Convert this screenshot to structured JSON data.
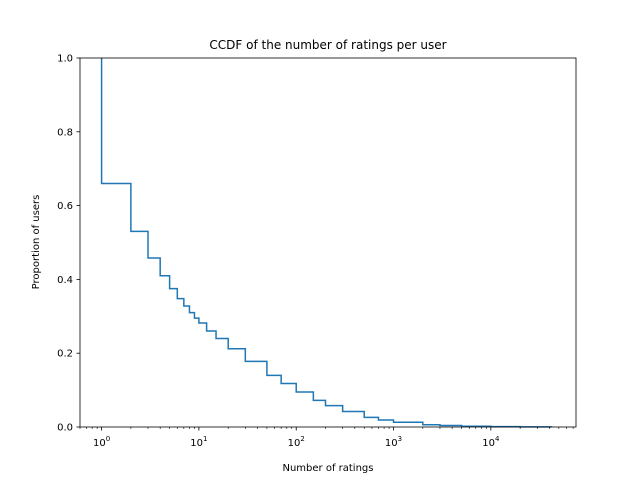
{
  "chart_data": {
    "type": "line",
    "title": "CCDF of the number of ratings per user",
    "xlabel": "Number of ratings",
    "ylabel": "Proportion of users",
    "xscale": "log",
    "xlim": [
      0.6,
      75000
    ],
    "ylim": [
      0,
      1.0
    ],
    "grid": false,
    "legend": "none",
    "x_ticks": [
      {
        "value": 1,
        "base": "10",
        "exp": "0"
      },
      {
        "value": 10,
        "base": "10",
        "exp": "1"
      },
      {
        "value": 100,
        "base": "10",
        "exp": "2"
      },
      {
        "value": 1000,
        "base": "10",
        "exp": "3"
      },
      {
        "value": 10000,
        "base": "10",
        "exp": "4"
      }
    ],
    "y_ticks": [
      {
        "value": 0.0,
        "label": "0.0"
      },
      {
        "value": 0.2,
        "label": "0.2"
      },
      {
        "value": 0.4,
        "label": "0.4"
      },
      {
        "value": 0.6,
        "label": "0.6"
      },
      {
        "value": 0.8,
        "label": "0.8"
      },
      {
        "value": 1.0,
        "label": "1.0"
      }
    ],
    "series": [
      {
        "color": "#1f77b4",
        "step": true,
        "x": [
          1,
          1,
          2,
          3,
          4,
          5,
          6,
          7,
          8,
          9,
          10,
          12,
          15,
          20,
          30,
          50,
          70,
          100,
          150,
          200,
          300,
          500,
          700,
          1000,
          2000,
          3000,
          5000,
          10000,
          20000,
          42000
        ],
        "y": [
          1.0,
          0.66,
          0.53,
          0.458,
          0.41,
          0.375,
          0.348,
          0.328,
          0.31,
          0.295,
          0.282,
          0.26,
          0.24,
          0.212,
          0.178,
          0.14,
          0.118,
          0.095,
          0.072,
          0.058,
          0.042,
          0.026,
          0.019,
          0.013,
          0.006,
          0.004,
          0.002,
          0.001,
          0.0003,
          0.0
        ]
      }
    ]
  }
}
